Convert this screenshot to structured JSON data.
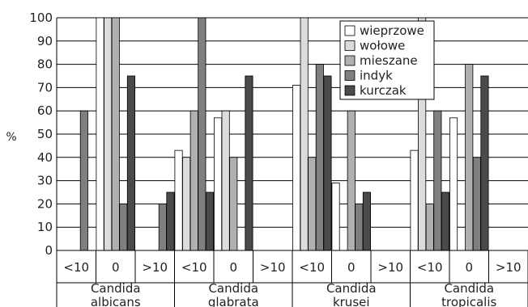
{
  "chart_data": {
    "type": "bar",
    "ylabel": "%",
    "ylim": [
      0,
      100
    ],
    "yticks": [
      0,
      10,
      20,
      30,
      40,
      50,
      60,
      70,
      80,
      90,
      100
    ],
    "grid": "horizontal",
    "legend_position": "top-right",
    "groups": [
      "Candida\nalbicans",
      "Candida\nglabrata",
      "Candida\nkrusei",
      "Candida\ntropicalis"
    ],
    "subcategories": [
      "<10",
      "0",
      ">10"
    ],
    "series": [
      {
        "name": "wieprzowe",
        "color": "#ffffff",
        "values": [
          [
            0,
            100,
            0
          ],
          [
            43,
            57,
            0
          ],
          [
            71,
            29,
            0
          ],
          [
            43,
            57,
            0
          ]
        ]
      },
      {
        "name": "wołowe",
        "color": "#dcdcdc",
        "values": [
          [
            0,
            100,
            0
          ],
          [
            40,
            60,
            0
          ],
          [
            100,
            0,
            0
          ],
          [
            100,
            0,
            0
          ]
        ]
      },
      {
        "name": "mieszane",
        "color": "#b0b0b0",
        "values": [
          [
            0,
            100,
            0
          ],
          [
            60,
            40,
            0
          ],
          [
            40,
            60,
            0
          ],
          [
            20,
            80,
            0
          ]
        ]
      },
      {
        "name": "indyk",
        "color": "#7f7f7f",
        "values": [
          [
            60,
            20,
            20
          ],
          [
            100,
            0,
            0
          ],
          [
            80,
            20,
            0
          ],
          [
            60,
            40,
            0
          ]
        ]
      },
      {
        "name": "kurczak",
        "color": "#4a4a4a",
        "values": [
          [
            0,
            75,
            25
          ],
          [
            25,
            75,
            0
          ],
          [
            75,
            25,
            0
          ],
          [
            25,
            75,
            0
          ]
        ]
      }
    ]
  }
}
